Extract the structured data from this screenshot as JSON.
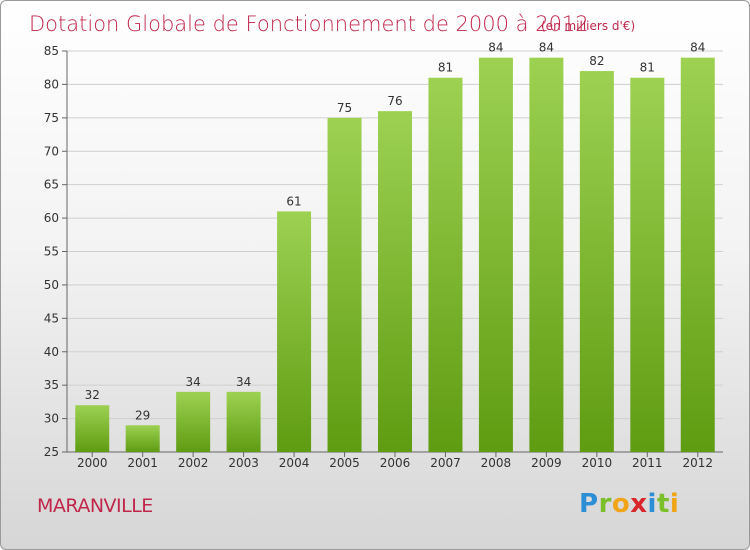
{
  "title": "Dotation Globale de Fonctionnement de 2000 à 2012",
  "subtitle": "(en milliers d'€)",
  "commune": "MARANVILLE",
  "logo_text": "Proxiti",
  "colors": {
    "title": "#c0264a",
    "bar_light": "#9dd152",
    "bar_dark": "#5f9c12",
    "grid": "#cfcfcf"
  },
  "chart_data": {
    "type": "bar",
    "categories": [
      "2000",
      "2001",
      "2002",
      "2003",
      "2004",
      "2005",
      "2006",
      "2007",
      "2008",
      "2009",
      "2010",
      "2011",
      "2012"
    ],
    "values": [
      32,
      29,
      34,
      34,
      61,
      75,
      76,
      81,
      84,
      84,
      82,
      81,
      84
    ],
    "title": "Dotation Globale de Fonctionnement de 2000 à 2012",
    "subtitle": "(en milliers d'€)",
    "xlabel": "",
    "ylabel": "",
    "ylim": [
      25,
      85
    ],
    "yticks": [
      25,
      30,
      35,
      40,
      45,
      50,
      55,
      60,
      65,
      70,
      75,
      80,
      85
    ],
    "grid": true,
    "legend": "none"
  }
}
